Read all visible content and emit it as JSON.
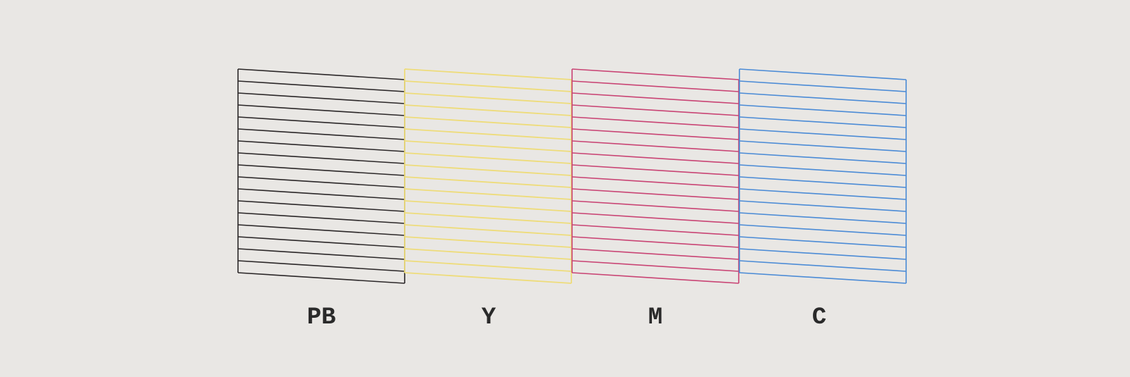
{
  "pattern": {
    "blocks": [
      {
        "label": "PB",
        "color": "#2b2728"
      },
      {
        "label": "Y",
        "color": "#eedc7a"
      },
      {
        "label": "M",
        "color": "#c94474"
      },
      {
        "label": "C",
        "color": "#4b8bd6"
      }
    ]
  },
  "background_color": "#e9e7e4"
}
